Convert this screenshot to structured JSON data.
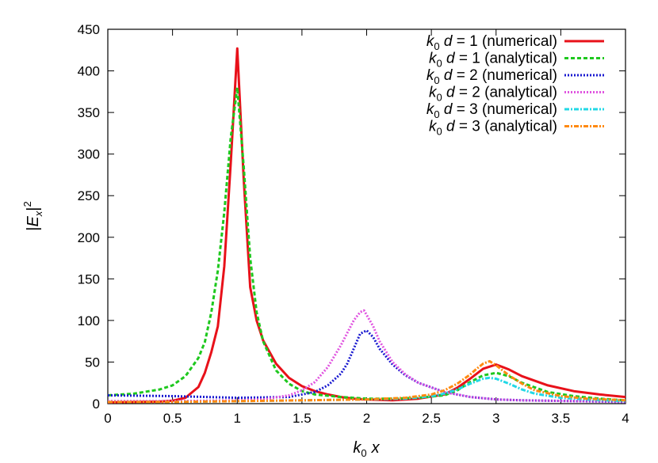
{
  "chart_data": {
    "type": "line",
    "xlabel": "k0 x",
    "ylabel": "|Ex|2",
    "xlim": [
      0,
      4
    ],
    "ylim": [
      0,
      450
    ],
    "xticks": [
      0,
      0.5,
      1,
      1.5,
      2,
      2.5,
      3,
      3.5,
      4
    ],
    "yticks": [
      0,
      50,
      100,
      150,
      200,
      250,
      300,
      350,
      400,
      450
    ],
    "grid": false,
    "legend_position": "top-right",
    "series": [
      {
        "name": "k0 d = 1 (numerical)",
        "color": "#e8111a",
        "dash": "solid",
        "x": [
          0,
          0.2,
          0.4,
          0.5,
          0.6,
          0.7,
          0.75,
          0.8,
          0.85,
          0.9,
          0.95,
          1.0,
          1.05,
          1.1,
          1.15,
          1.2,
          1.3,
          1.4,
          1.5,
          1.6,
          1.7,
          1.8,
          1.9,
          2.0,
          2.2,
          2.4,
          2.6,
          2.7,
          2.8,
          2.9,
          3.0,
          3.1,
          3.2,
          3.4,
          3.6,
          3.8,
          4.0
        ],
        "values": [
          1.5,
          2,
          2.5,
          3.5,
          7,
          20,
          37,
          62,
          93,
          165,
          290,
          427,
          270,
          140,
          100,
          76,
          48,
          31,
          21,
          15,
          11,
          8,
          6,
          5,
          4,
          6,
          11,
          19,
          30,
          42,
          47,
          41,
          33,
          22,
          15,
          11,
          8
        ]
      },
      {
        "name": "k0 d = 1 (analytical)",
        "color": "#1ec81e",
        "dash": "5,3",
        "x": [
          0,
          0.2,
          0.4,
          0.5,
          0.6,
          0.7,
          0.75,
          0.8,
          0.85,
          0.9,
          0.95,
          1.0,
          1.05,
          1.1,
          1.15,
          1.2,
          1.3,
          1.4,
          1.5,
          1.6,
          1.8,
          2.0,
          2.2,
          2.4,
          2.6,
          2.7,
          2.8,
          2.9,
          3.0,
          3.1,
          3.2,
          3.4,
          3.6,
          3.8,
          4.0
        ],
        "values": [
          10,
          12,
          17,
          22,
          33,
          55,
          74,
          110,
          160,
          230,
          320,
          380,
          285,
          175,
          110,
          75,
          40,
          24,
          15,
          11,
          8,
          6,
          6,
          7,
          10,
          16,
          26,
          34,
          37,
          33,
          25,
          14,
          9,
          6,
          4
        ]
      },
      {
        "name": "k0 d = 2 (numerical)",
        "color": "#1a1ad0",
        "dash": "2,2",
        "x": [
          0,
          0.5,
          1.0,
          1.4,
          1.6,
          1.7,
          1.8,
          1.85,
          1.9,
          1.95,
          2.0,
          2.05,
          2.1,
          2.2,
          2.3,
          2.4,
          2.6,
          2.8,
          3.0,
          3.2,
          3.6,
          4.0
        ],
        "values": [
          10,
          9,
          7,
          8,
          14,
          22,
          36,
          48,
          66,
          84,
          88,
          80,
          66,
          47,
          34,
          25,
          14,
          8,
          5,
          4,
          3,
          2
        ]
      },
      {
        "name": "k0 d = 2 (analytical)",
        "color": "#e055e0",
        "dash": "2,2",
        "x": [
          0,
          0.5,
          1.0,
          1.2,
          1.4,
          1.5,
          1.6,
          1.7,
          1.8,
          1.85,
          1.9,
          1.95,
          1.98,
          2.05,
          2.1,
          2.2,
          2.3,
          2.4,
          2.6,
          2.8,
          3.0,
          3.2,
          3.6,
          4.0
        ],
        "values": [
          3,
          3,
          4,
          5,
          10,
          16,
          26,
          44,
          70,
          85,
          100,
          110,
          112,
          93,
          75,
          50,
          35,
          25,
          14,
          8,
          5,
          4,
          3,
          2
        ]
      },
      {
        "name": "k0 d = 3 (numerical)",
        "color": "#22d8e6",
        "dash": "6,2,2,2",
        "x": [
          0,
          0.5,
          1.0,
          1.5,
          2.0,
          2.3,
          2.5,
          2.6,
          2.7,
          2.8,
          2.85,
          2.9,
          2.95,
          3.0,
          3.1,
          3.2,
          3.3,
          3.5,
          3.7,
          4.0
        ],
        "values": [
          2,
          2,
          3,
          4,
          5,
          6,
          9,
          12,
          17,
          24,
          27,
          30,
          31,
          30,
          24,
          17,
          12,
          7,
          5,
          3
        ]
      },
      {
        "name": "k0 d = 3 (analytical)",
        "color": "#ff8a10",
        "dash": "6,2,2,2",
        "x": [
          0,
          0.5,
          1.0,
          1.5,
          2.0,
          2.3,
          2.5,
          2.6,
          2.7,
          2.8,
          2.85,
          2.9,
          2.95,
          3.0,
          3.1,
          3.2,
          3.3,
          3.5,
          3.7,
          4.0
        ],
        "values": [
          2,
          2,
          3,
          4,
          5,
          7,
          11,
          16,
          24,
          35,
          42,
          48,
          51,
          46,
          34,
          24,
          16,
          9,
          6,
          4
        ]
      }
    ]
  }
}
